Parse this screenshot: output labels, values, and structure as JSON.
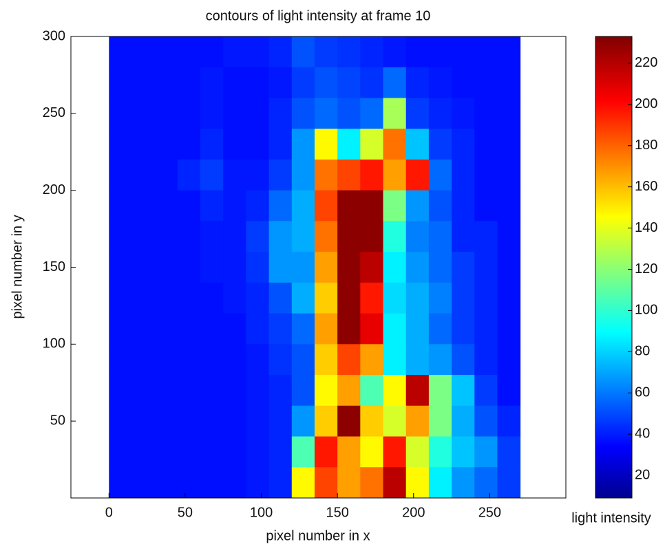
{
  "chart_data": {
    "type": "heatmap",
    "title": "contours of light intensity at frame 10",
    "x_label": "pixel number in x",
    "y_label": "pixel number in y",
    "colorbar_label": "light intensity",
    "colormap": "jet",
    "xlim": [
      -25,
      300
    ],
    "ylim": [
      0,
      300
    ],
    "xticks": [
      0,
      50,
      100,
      150,
      200,
      250
    ],
    "yticks": [
      50,
      100,
      150,
      200,
      250,
      300
    ],
    "image_xrange": [
      0,
      270
    ],
    "image_yrange": [
      0,
      300
    ],
    "clim": [
      9,
      233
    ],
    "cticks": [
      20,
      40,
      60,
      80,
      100,
      120,
      140,
      160,
      180,
      200,
      220
    ],
    "z": [
      [
        40,
        40,
        40,
        40,
        40,
        42,
        42,
        45,
        55,
        50,
        48,
        45,
        42,
        40,
        40,
        40,
        40,
        40
      ],
      [
        40,
        40,
        40,
        40,
        42,
        40,
        40,
        42,
        50,
        55,
        52,
        48,
        60,
        45,
        42,
        40,
        40,
        40
      ],
      [
        40,
        40,
        40,
        40,
        42,
        40,
        40,
        45,
        55,
        60,
        55,
        60,
        130,
        50,
        45,
        42,
        40,
        40
      ],
      [
        40,
        40,
        40,
        40,
        45,
        40,
        40,
        45,
        70,
        150,
        90,
        140,
        180,
        80,
        50,
        45,
        40,
        40
      ],
      [
        40,
        40,
        40,
        45,
        50,
        42,
        42,
        50,
        70,
        180,
        190,
        200,
        170,
        200,
        60,
        45,
        40,
        40
      ],
      [
        40,
        40,
        40,
        40,
        45,
        42,
        45,
        60,
        75,
        190,
        230,
        230,
        120,
        70,
        55,
        45,
        40,
        40
      ],
      [
        40,
        40,
        40,
        40,
        42,
        42,
        50,
        70,
        75,
        180,
        230,
        230,
        100,
        65,
        60,
        45,
        45,
        40
      ],
      [
        40,
        40,
        40,
        40,
        42,
        42,
        48,
        70,
        70,
        170,
        230,
        220,
        90,
        70,
        60,
        50,
        45,
        40
      ],
      [
        40,
        40,
        40,
        40,
        40,
        42,
        45,
        55,
        75,
        160,
        230,
        200,
        85,
        75,
        65,
        50,
        45,
        40
      ],
      [
        40,
        40,
        40,
        40,
        40,
        40,
        45,
        50,
        60,
        170,
        230,
        210,
        90,
        75,
        60,
        50,
        45,
        40
      ],
      [
        40,
        40,
        40,
        40,
        40,
        40,
        42,
        48,
        55,
        160,
        190,
        170,
        90,
        75,
        70,
        55,
        45,
        40
      ],
      [
        40,
        40,
        40,
        40,
        40,
        40,
        42,
        45,
        55,
        150,
        170,
        110,
        150,
        220,
        120,
        80,
        50,
        40
      ],
      [
        40,
        40,
        40,
        40,
        40,
        40,
        42,
        45,
        70,
        160,
        230,
        160,
        140,
        170,
        120,
        75,
        55,
        45
      ],
      [
        40,
        40,
        40,
        40,
        40,
        40,
        42,
        45,
        110,
        200,
        170,
        150,
        200,
        140,
        100,
        80,
        70,
        50
      ],
      [
        40,
        40,
        40,
        40,
        40,
        40,
        42,
        45,
        150,
        190,
        170,
        180,
        220,
        150,
        90,
        70,
        60,
        50
      ]
    ]
  }
}
